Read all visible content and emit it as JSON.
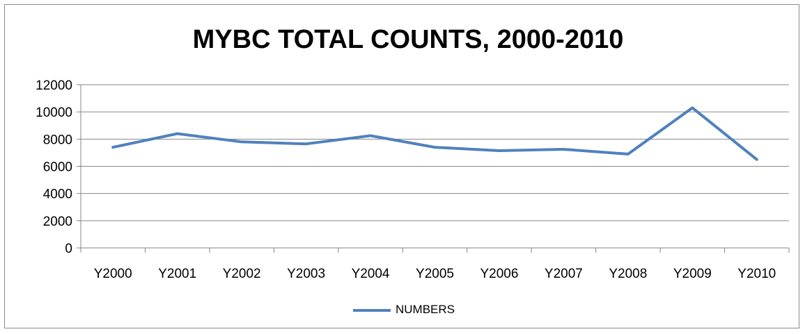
{
  "chart_data": {
    "type": "line",
    "title": "MYBC TOTAL COUNTS, 2000-2010",
    "xlabel": "",
    "ylabel": "",
    "categories": [
      "Y2000",
      "Y2001",
      "Y2002",
      "Y2003",
      "Y2004",
      "Y2005",
      "Y2006",
      "Y2007",
      "Y2008",
      "Y2009",
      "Y2010"
    ],
    "series": [
      {
        "name": "NUMBERS",
        "values": [
          7400,
          8400,
          7800,
          7650,
          8250,
          7400,
          7150,
          7250,
          6900,
          10300,
          6500
        ]
      }
    ],
    "ylim": [
      0,
      12000
    ],
    "yticks": [
      "0",
      "2000",
      "4000",
      "6000",
      "8000",
      "10000",
      "12000"
    ],
    "grid": true,
    "legend": "bottom",
    "colors": {
      "series": "#4f81bd",
      "grid": "#868686",
      "axis": "#868686"
    }
  }
}
